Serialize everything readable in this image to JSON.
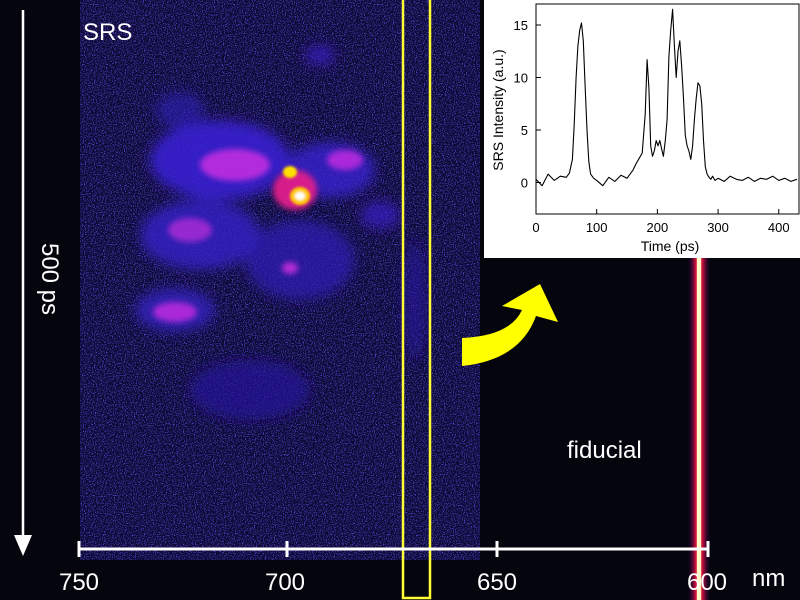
{
  "streak_image": {
    "label": "SRS",
    "annotation": "fiducial",
    "time_scale_label": "500 ps",
    "wavelength_unit": "nm",
    "wavelength_ticks": [
      "750",
      "700",
      "650",
      "600"
    ],
    "highlight_color": "#ffff33",
    "arrow_color": "#ffff00"
  },
  "chart_data": {
    "type": "line",
    "title": "",
    "xlabel": "Time (ps)",
    "ylabel": "SRS Intensity (a.u.)",
    "xlim": [
      0,
      435
    ],
    "ylim": [
      -3,
      17
    ],
    "xticks": [
      0,
      100,
      200,
      300,
      400
    ],
    "yticks": [
      0,
      5,
      10,
      15
    ],
    "grid": false,
    "series": [
      {
        "color": "#000000",
        "x": [
          0,
          10,
          20,
          30,
          40,
          50,
          55,
          60,
          63,
          66,
          69,
          72,
          75,
          78,
          81,
          84,
          87,
          90,
          95,
          100,
          110,
          120,
          130,
          140,
          150,
          155,
          160,
          165,
          170,
          175,
          180,
          183,
          186,
          189,
          192,
          195,
          198,
          201,
          204,
          207,
          210,
          213,
          216,
          219,
          222,
          225,
          228,
          231,
          234,
          237,
          240,
          243,
          246,
          249,
          252,
          255,
          258,
          261,
          264,
          267,
          270,
          273,
          276,
          279,
          282,
          285,
          288,
          291,
          295,
          300,
          310,
          320,
          330,
          340,
          350,
          360,
          370,
          380,
          390,
          400,
          410,
          420,
          430
        ],
        "y": [
          0.3,
          -0.3,
          0.8,
          0.2,
          0.6,
          0.5,
          0.9,
          2.2,
          5.5,
          10,
          13,
          14.5,
          15.2,
          13.5,
          9,
          5,
          2,
          0.8,
          0.4,
          0.2,
          -0.3,
          0.5,
          0.1,
          0.7,
          0.4,
          0.8,
          1.2,
          1.8,
          2.3,
          2.8,
          6.5,
          11.7,
          9,
          3.5,
          2.5,
          3,
          4,
          3.5,
          4,
          3.2,
          2.5,
          4,
          6,
          12,
          14.5,
          16.5,
          13,
          10,
          12.5,
          13.5,
          11,
          8,
          4.5,
          3.5,
          3,
          2.2,
          3.5,
          6,
          8,
          9.5,
          9.2,
          7.5,
          4,
          1.5,
          0.8,
          0.5,
          0.3,
          0.6,
          0.2,
          0.4,
          0.1,
          0.6,
          0.3,
          0.2,
          0.5,
          0.1,
          0.4,
          0.3,
          0.6,
          0.2,
          0.4,
          0.1,
          0.3
        ]
      }
    ]
  }
}
